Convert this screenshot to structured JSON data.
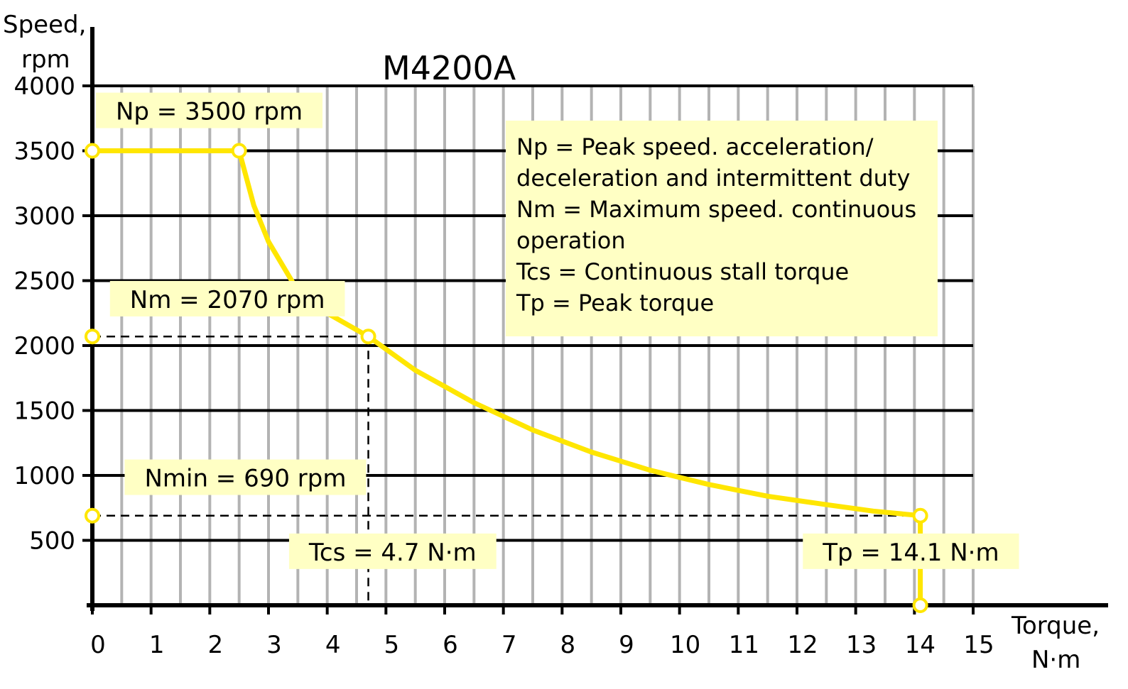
{
  "chart_data": {
    "type": "line",
    "title": "M4200A",
    "ylabel_line1": "Speed,",
    "ylabel_line2": "rpm",
    "xlabel_line1": "Torque,",
    "xlabel_line2": "N·m",
    "xlim": [
      0,
      15
    ],
    "ylim": [
      0,
      4000
    ],
    "xticks": [
      0,
      1,
      2,
      3,
      4,
      5,
      6,
      7,
      8,
      9,
      10,
      11,
      12,
      13,
      14,
      15
    ],
    "yticks": [
      500,
      1000,
      1500,
      2000,
      2500,
      3000,
      3500,
      4000
    ],
    "x_minor_step": 0.5,
    "grid": true,
    "colors": {
      "curve": "#ffe600",
      "label_bg": "#ffffc4",
      "grid_major": "#000000",
      "grid_minor": "#b3b3b3"
    },
    "series": [
      {
        "points": [
          [
            0,
            3500
          ],
          [
            2.5,
            3500
          ],
          [
            2.75,
            3080
          ],
          [
            3.0,
            2800
          ],
          [
            3.5,
            2420
          ],
          [
            4.0,
            2250
          ],
          [
            4.7,
            2070
          ],
          [
            5.5,
            1810
          ],
          [
            6.5,
            1560
          ],
          [
            7.5,
            1350
          ],
          [
            8.5,
            1180
          ],
          [
            9.5,
            1040
          ],
          [
            10.5,
            930
          ],
          [
            11.5,
            840
          ],
          [
            12.5,
            775
          ],
          [
            13.3,
            725
          ],
          [
            14.1,
            690
          ],
          [
            14.1,
            0
          ]
        ]
      }
    ],
    "markers": [
      {
        "x": 0,
        "y": 3500
      },
      {
        "x": 2.5,
        "y": 3500
      },
      {
        "x": 0,
        "y": 2070
      },
      {
        "x": 4.7,
        "y": 2070
      },
      {
        "x": 0,
        "y": 690
      },
      {
        "x": 14.1,
        "y": 690
      },
      {
        "x": 14.1,
        "y": 0
      }
    ],
    "reference_lines": [
      {
        "from": [
          0,
          2070
        ],
        "to": [
          4.7,
          2070
        ]
      },
      {
        "from": [
          4.7,
          2070
        ],
        "to": [
          4.7,
          0
        ]
      },
      {
        "from": [
          0,
          690
        ],
        "to": [
          14.1,
          690
        ]
      }
    ],
    "annotations": [
      {
        "text": "Np = 3500 rpm",
        "x": 0.06,
        "y": 3740
      },
      {
        "text": "Nm = 2070 rpm",
        "x": 0.3,
        "y": 2290
      },
      {
        "text": "Nmin = 690 rpm",
        "x": 0.55,
        "y": 915
      },
      {
        "text": "Tcs = 4.7 N·m",
        "x": 3.35,
        "y": 345
      },
      {
        "text": "Tp = 14.1 N·m",
        "x": 12.1,
        "y": 345
      }
    ],
    "legend": {
      "placement": "top-right",
      "lines": [
        "Np  = Peak speed. acceleration/",
        "deceleration and intermittent duty",
        "Nm = Maximum speed. continuous",
        "operation",
        "Tcs  = Continuous stall torque",
        "Tp   = Peak torque"
      ]
    }
  }
}
